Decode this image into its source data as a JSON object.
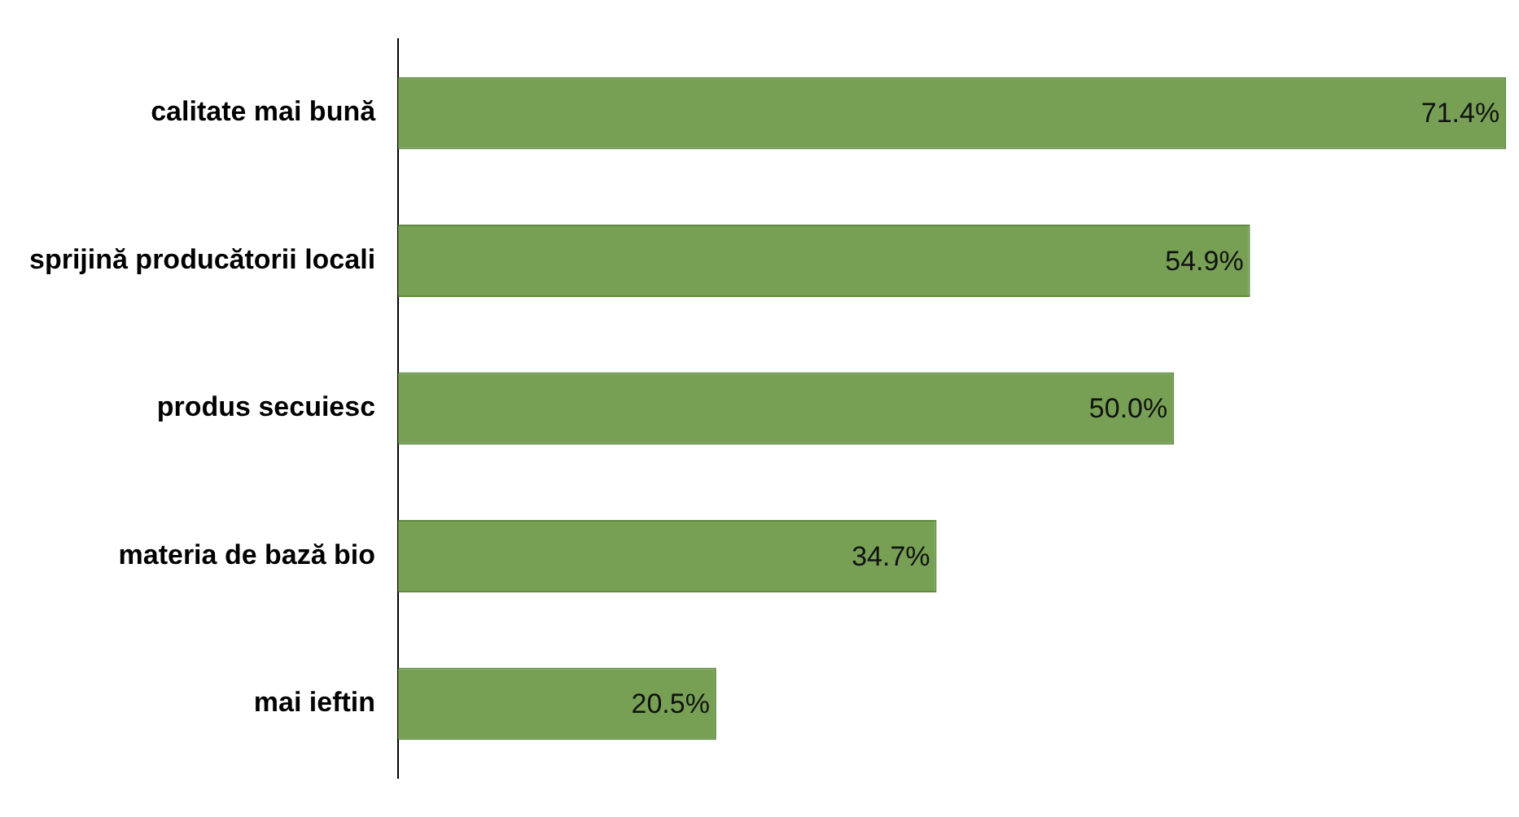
{
  "chart_data": {
    "type": "bar",
    "orientation": "horizontal",
    "categories": [
      "calitate mai bună",
      "sprijină producătorii locali",
      "produs secuiesc",
      "materia de bază bio",
      "mai ieftin"
    ],
    "values": [
      71.4,
      54.9,
      50.0,
      34.7,
      20.5
    ],
    "value_labels": [
      "71.4%",
      "54.9%",
      "50.0%",
      "34.7%",
      "20.5%"
    ],
    "color": "#77a055",
    "xlim": [
      0,
      71.6
    ],
    "grid": false,
    "legend": false,
    "tick_labels": "y"
  }
}
